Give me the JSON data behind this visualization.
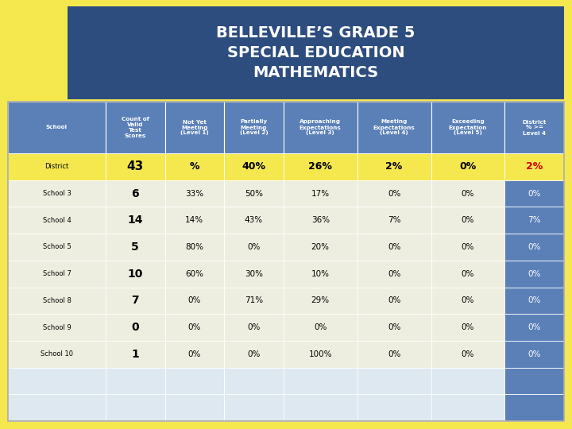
{
  "title": "BELLEVILLE’S GRADE 5\nSPECIAL EDUCATION\nMATHEMATICS",
  "title_bg": "#2d4d7f",
  "title_color": "#ffffff",
  "outer_bg": "#f5e84e",
  "header_bg": "#5b80b8",
  "header_color": "#ffffff",
  "district_row_bg": "#f5e84e",
  "district_row_color": "#000000",
  "school_row_bg": "#eeeee0",
  "school_row_alt_bg": "#dde4ef",
  "last_col_bg": "#5b80b8",
  "last_col_color": "#ffffff",
  "district_last_col_color": "#cc0000",
  "empty_row_bg": "#dde8f0",
  "columns": [
    "School",
    "Count of\nValid\nTest\nScores",
    "Not Yet\nMeeting\n(Level 1)",
    "Partially\nMeeting\n(Level 2)",
    "Approaching\nExpectations\n(Level 3)",
    "Meeting\nExpectations\n(Level 4)",
    "Exceeding\nExpectation\n(Level 5)",
    "District\n% >=\nLevel 4"
  ],
  "rows": [
    [
      "District",
      "43",
      "%",
      "40%",
      "26%",
      "2%",
      "0%",
      "2%"
    ],
    [
      "School 3",
      "6",
      "33%",
      "50%",
      "17%",
      "0%",
      "0%",
      "0%"
    ],
    [
      "School 4",
      "14",
      "14%",
      "43%",
      "36%",
      "7%",
      "0%",
      "7%"
    ],
    [
      "School 5",
      "5",
      "80%",
      "0%",
      "20%",
      "0%",
      "0%",
      "0%"
    ],
    [
      "School 7",
      "10",
      "60%",
      "30%",
      "10%",
      "0%",
      "0%",
      "0%"
    ],
    [
      "School 8",
      "7",
      "0%",
      "71%",
      "29%",
      "0%",
      "0%",
      "0%"
    ],
    [
      "School 9",
      "0",
      "0%",
      "0%",
      "0%",
      "0%",
      "0%",
      "0%"
    ],
    [
      "School 10",
      "1",
      "0%",
      "0%",
      "100%",
      "0%",
      "0%",
      "0%"
    ],
    [
      "",
      "",
      "",
      "",
      "",
      "",
      "",
      ""
    ],
    [
      "",
      "",
      "",
      "",
      "",
      "",
      "",
      ""
    ]
  ]
}
